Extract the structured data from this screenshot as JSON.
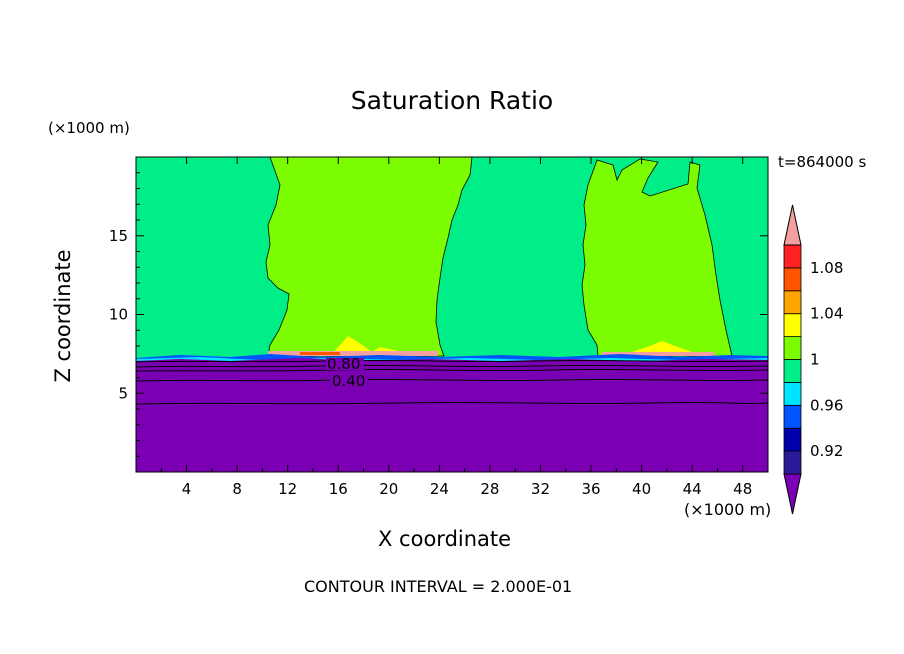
{
  "chart_data": {
    "type": "heatmap",
    "title": "Saturation Ratio",
    "xlabel": "X coordinate",
    "ylabel": "Z coordinate",
    "x_unit": "(×1000 m)",
    "y_unit": "(×1000 m)",
    "time_label": "t=864000 s",
    "footer": "CONTOUR INTERVAL = 2.000E-01",
    "xlim": [
      0,
      50
    ],
    "ylim": [
      0,
      20
    ],
    "x_ticks": [
      4,
      8,
      12,
      16,
      20,
      24,
      28,
      32,
      36,
      40,
      44,
      48
    ],
    "y_ticks": [
      5,
      10,
      15
    ],
    "colorbar": {
      "labels": [
        "1.08",
        "1.04",
        "1",
        "0.96",
        "0.92"
      ],
      "levels": [
        0.92,
        0.94,
        0.96,
        0.98,
        1.0,
        1.02,
        1.04,
        1.06,
        1.08,
        1.1
      ],
      "colors": [
        "#7b00b4",
        "#2b1b9b",
        "#0000aa",
        "#0055ff",
        "#00e5ff",
        "#00ee88",
        "#7cfc00",
        "#ffff00",
        "#ffa500",
        "#ff5500",
        "#ff2222",
        "#f4a0a0"
      ]
    },
    "contour_labels": [
      "0.80",
      "0.40"
    ],
    "regions": [
      {
        "name": "lower",
        "value": "< 0.92",
        "color": "#7b00b4",
        "z_range": [
          0,
          7.2
        ]
      },
      {
        "name": "upper",
        "value": "0.98 – 1",
        "color": "#00ee88",
        "z_range": [
          7.2,
          20
        ]
      },
      {
        "name": "band-1",
        "value": "1 – 1.02",
        "color": "#7cfc00",
        "x_range": [
          10.5,
          24
        ],
        "z_range": [
          7.6,
          20
        ]
      },
      {
        "name": "band-2",
        "value": "1 – 1.02",
        "color": "#7cfc00",
        "x_range": [
          35.5,
          46.5
        ],
        "z_range": [
          7.6,
          19
        ]
      }
    ]
  }
}
